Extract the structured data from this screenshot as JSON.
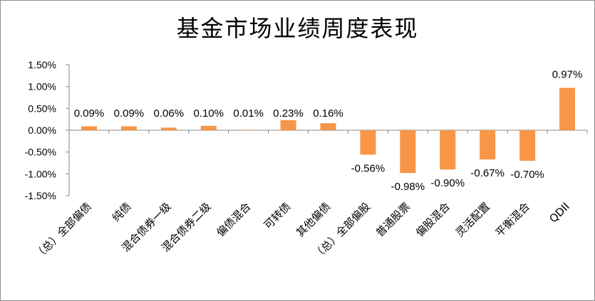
{
  "chart_data": {
    "type": "bar",
    "title": "基金市场业绩周度表现",
    "categories": [
      "（总）全部偏债",
      "纯债",
      "混合债券一级",
      "混合债券二级",
      "偏债混合",
      "可转债",
      "其他偏债",
      "（总）全部偏股",
      "普通股票",
      "偏股混合",
      "灵活配置",
      "平衡混合",
      "QDII"
    ],
    "values": [
      0.09,
      0.09,
      0.06,
      0.1,
      0.01,
      0.23,
      0.16,
      -0.56,
      -0.98,
      -0.9,
      -0.67,
      -0.7,
      0.97
    ],
    "data_labels": [
      "0.09%",
      "0.09%",
      "0.06%",
      "0.10%",
      "0.01%",
      "0.23%",
      "0.16%",
      "-0.56%",
      "-0.98%",
      "-0.90%",
      "-0.67%",
      "-0.70%",
      "0.97%"
    ],
    "yticks": [
      "1.50%",
      "1.00%",
      "0.50%",
      "0.00%",
      "-0.50%",
      "-1.00%",
      "-1.50%"
    ],
    "ylim": [
      -1.5,
      1.5
    ],
    "unit": "%",
    "xlabel": "",
    "ylabel": "",
    "bar_color": "#F79646",
    "grid": false,
    "legend": "none"
  }
}
